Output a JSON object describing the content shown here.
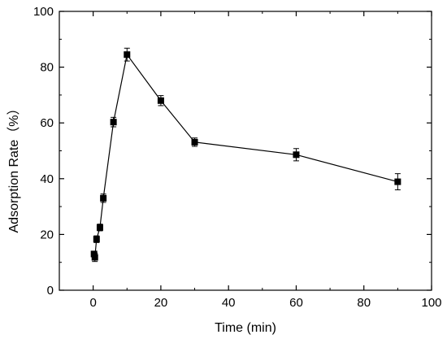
{
  "chart_data": {
    "type": "line",
    "xlabel": "Time (min)",
    "ylabel": "Adsorption Rate（%）",
    "xlim": [
      -10,
      100
    ],
    "ylim": [
      0,
      100
    ],
    "xticks": [
      0,
      20,
      40,
      60,
      80,
      100
    ],
    "yticks": [
      0,
      20,
      40,
      60,
      80,
      100
    ],
    "grid": false,
    "marker": "square",
    "error_bars": true,
    "series": [
      {
        "x": [
          0.25,
          0.5,
          1,
          2,
          3,
          6,
          10,
          20,
          30,
          60,
          90
        ],
        "y": [
          13.0,
          11.8,
          18.3,
          22.5,
          33.0,
          60.3,
          84.5,
          68.0,
          53.1,
          48.6,
          38.9
        ],
        "err": [
          1.0,
          1.5,
          1.2,
          1.2,
          1.5,
          1.7,
          2.3,
          1.8,
          1.5,
          2.2,
          2.9
        ]
      }
    ],
    "colors": {
      "line": "#000000",
      "marker": "#000000"
    }
  }
}
